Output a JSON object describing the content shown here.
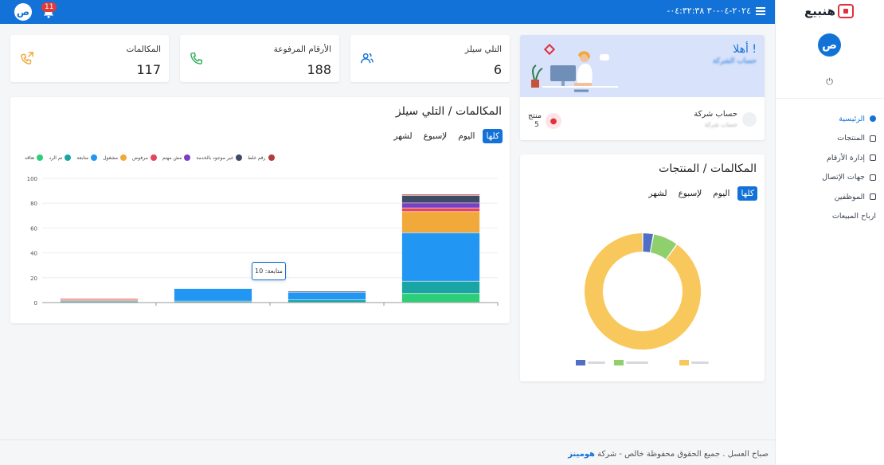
{
  "topbar": {
    "date": "-٢٠٢٤-٠٤-٣٠ ٠٤:٣٢:٣٨",
    "notification_count": "11",
    "user_initial": "ص"
  },
  "sidebar": {
    "logo": "هنبيع",
    "avatar_initial": "ص",
    "items": [
      {
        "label": "الرئيسية",
        "icon": "home-icon"
      },
      {
        "label": "المنتجات",
        "icon": "box-icon"
      },
      {
        "label": "إدارة الأرقام",
        "icon": "numbers-icon"
      },
      {
        "label": "جهات الإتصال",
        "icon": "contacts-icon"
      },
      {
        "label": "الموظفين",
        "icon": "employees-icon"
      },
      {
        "label": "ارباح المبيعات",
        "icon": "profit-icon"
      }
    ]
  },
  "stats": [
    {
      "label": "التلي سيلز",
      "value": "6",
      "icon": "users-icon"
    },
    {
      "label": "الأرقام المرفوعة",
      "value": "188",
      "icon": "phone-icon"
    },
    {
      "label": "المكالمات",
      "value": "117",
      "icon": "phone-outgoing-icon"
    }
  ],
  "welcome": {
    "title": "أهلا !",
    "company_label": "حساب شركة",
    "product_label": "منتج",
    "product_count": "5"
  },
  "bar_card": {
    "title": "المكالمات / التلي سيلز",
    "filters": [
      "كلها",
      "اليوم",
      "لإسبوع",
      "لشهر"
    ],
    "tooltip": "متابعة: 10"
  },
  "donut_card": {
    "title": "المكالمات / المنتجات",
    "filters": [
      "كلها",
      "اليوم",
      "لإسبوع",
      "لشهر"
    ]
  },
  "footer": {
    "text": "صباح العسل . جميع الحقوق محفوظة خالص - شركة",
    "brand": "هومينز"
  },
  "colors": {
    "primary": "#1372d8",
    "danger": "#e03b3b"
  },
  "chart_data": [
    {
      "type": "bar",
      "stacked": true,
      "ylim": [
        0,
        100
      ],
      "yticks": [
        0,
        20,
        40,
        60,
        80,
        100
      ],
      "categories": [
        "",
        "",
        "",
        ""
      ],
      "legend_position": "top",
      "series": [
        {
          "name": "رقم غلط",
          "color": "#b23b3b",
          "values": [
            0,
            0,
            0,
            1
          ]
        },
        {
          "name": "غير موجود بالخدمة",
          "color": "#3e4a66",
          "values": [
            0,
            0,
            1,
            6
          ]
        },
        {
          "name": "مش مهتم",
          "color": "#7c3fc4",
          "values": [
            0,
            0,
            0,
            4
          ]
        },
        {
          "name": "مرفوض",
          "color": "#e2475b",
          "values": [
            1,
            0,
            0,
            3
          ]
        },
        {
          "name": "مشغول",
          "color": "#f0a93a",
          "values": [
            1,
            0,
            0,
            17
          ]
        },
        {
          "name": "متابعة",
          "color": "#2196f3",
          "values": [
            1,
            10,
            6,
            39
          ]
        },
        {
          "name": "تم الرد",
          "color": "#1aa5a5",
          "values": [
            0,
            1,
            2,
            10
          ]
        },
        {
          "name": "تعاقد",
          "color": "#2dce78",
          "values": [
            0,
            0,
            0,
            7
          ]
        }
      ]
    },
    {
      "type": "pie",
      "donut": true,
      "legend_position": "bottom",
      "slices": [
        {
          "name": "",
          "value": 3,
          "color": "#4f6fc4"
        },
        {
          "name": "",
          "value": 7,
          "color": "#8fcf6c"
        },
        {
          "name": "",
          "value": 90,
          "color": "#f8c85c"
        }
      ]
    }
  ]
}
